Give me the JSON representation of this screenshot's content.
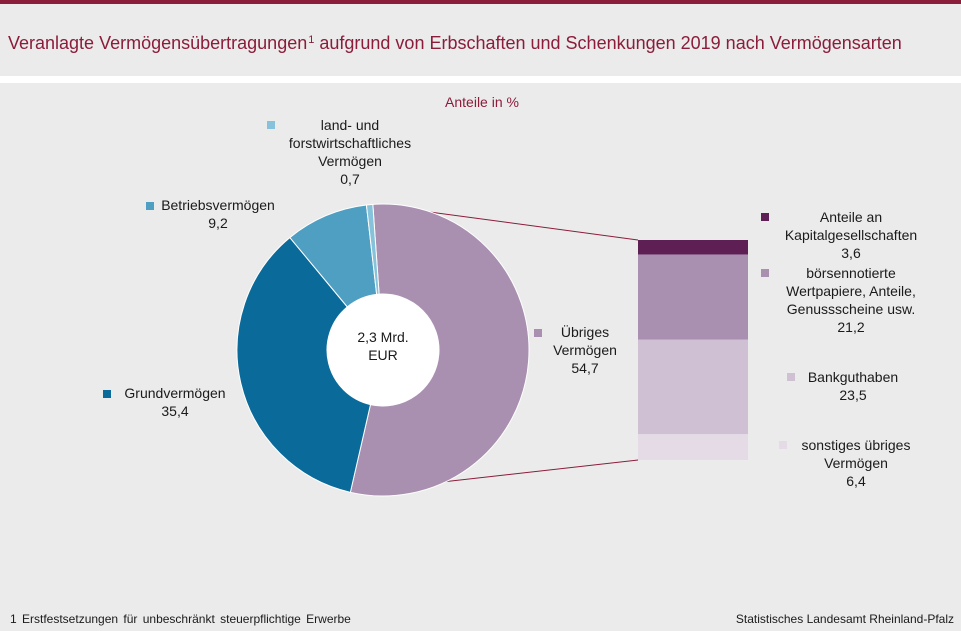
{
  "title": {
    "main": "Veranlagte Vermögensübertragungen",
    "footnote_ref": "1",
    "rest": "aufgrund von Erbschaften und Schenkungen 2019 nach Vermögensarten"
  },
  "footnote": "1 Erstfestsetzungen für unbeschränkt steuerpflichtige Erwerbe",
  "source": "Statistisches Landesamt Rheinland-Pfalz",
  "colors": {
    "accent": "#8b1c3a",
    "background": "#ebebeb"
  },
  "chart_data": [
    {
      "type": "pie",
      "subtitle": "Anteile in %",
      "center_label": [
        "2,3 Mrd.",
        "EUR"
      ],
      "slices": [
        {
          "name_lines": [
            "Übriges",
            "Vermögen"
          ],
          "value": 54.7,
          "label": "54,7",
          "color": "#a98fb0"
        },
        {
          "name_lines": [
            "Grundvermögen"
          ],
          "value": 35.4,
          "label": "35,4",
          "color": "#0a6a9a"
        },
        {
          "name_lines": [
            "Betriebsvermögen"
          ],
          "value": 9.2,
          "label": "9,2",
          "color": "#4f9fc2"
        },
        {
          "name_lines": [
            "land- und",
            "forstwirtschaftliches",
            "Vermögen"
          ],
          "value": 0.7,
          "label": "0,7",
          "color": "#86c3da"
        }
      ]
    },
    {
      "type": "bar",
      "stacked": true,
      "series": [
        {
          "name_lines": [
            "Anteile an",
            "Kapitalgesellschaften"
          ],
          "value": 3.6,
          "label": "3,6",
          "color": "#5e1f54"
        },
        {
          "name_lines": [
            "börsennotierte",
            "Wertpapiere, Anteile,",
            "Genussscheine usw."
          ],
          "value": 21.2,
          "label": "21,2",
          "color": "#a98fb0"
        },
        {
          "name_lines": [
            "Bankguthaben"
          ],
          "value": 23.5,
          "label": "23,5",
          "color": "#cfc0d3"
        },
        {
          "name_lines": [
            "sonstiges übriges",
            "Vermögen"
          ],
          "value": 6.4,
          "label": "6,4",
          "color": "#e5dbe6"
        }
      ]
    }
  ]
}
